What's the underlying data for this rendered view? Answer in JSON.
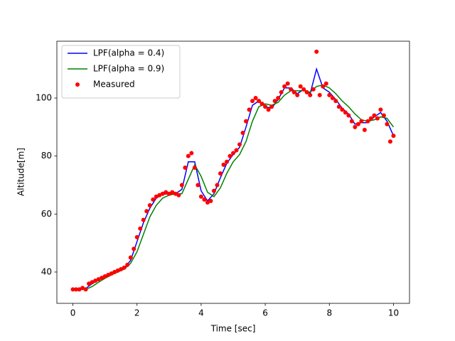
{
  "chart_data": {
    "type": "line",
    "x_label": "Time [sec]",
    "y_label": "Altitude[m]",
    "xlim": [
      -0.5,
      10.5
    ],
    "ylim": [
      29.2,
      119.6
    ],
    "xticks": [
      0,
      2,
      4,
      6,
      8,
      10
    ],
    "yticks": [
      40,
      60,
      80,
      100
    ],
    "grid": false,
    "legend": "upper-left",
    "series": [
      {
        "name": "LPF(alpha = 0.4)",
        "color": "#0000ff",
        "style": "line",
        "x": [
          0,
          0.2,
          0.4,
          0.6,
          0.8,
          1,
          1.2,
          1.4,
          1.6,
          1.8,
          2,
          2.2,
          2.4,
          2.6,
          2.8,
          3,
          3.2,
          3.4,
          3.6,
          3.8,
          4,
          4.2,
          4.4,
          4.6,
          4.8,
          5,
          5.2,
          5.4,
          5.6,
          5.8,
          6,
          6.2,
          6.4,
          6.6,
          6.8,
          7,
          7.2,
          7.4,
          7.6,
          7.8,
          8,
          8.2,
          8.4,
          8.6,
          8.8,
          9,
          9.2,
          9.4,
          9.6,
          9.8,
          10
        ],
        "values": [
          34,
          34,
          34.3,
          36,
          37.3,
          38.3,
          39.3,
          40.3,
          41.3,
          44,
          50.5,
          57,
          62,
          65.5,
          66.8,
          67,
          67,
          68.5,
          78,
          78,
          68,
          64.5,
          67,
          72.5,
          77.5,
          80.5,
          83,
          90,
          97.5,
          99,
          97,
          96.5,
          99.5,
          103.5,
          103.5,
          101.5,
          103,
          101.5,
          110,
          103.5,
          102,
          99.5,
          96.5,
          94.5,
          91,
          91.5,
          91.5,
          93.5,
          95,
          92,
          87
        ]
      },
      {
        "name": "LPF(alpha = 0.9)",
        "color": "#008000",
        "style": "line",
        "x": [
          0,
          0.2,
          0.4,
          0.6,
          0.8,
          1,
          1.2,
          1.4,
          1.6,
          1.8,
          2,
          2.2,
          2.4,
          2.6,
          2.8,
          3,
          3.2,
          3.4,
          3.6,
          3.8,
          4,
          4.2,
          4.4,
          4.6,
          4.8,
          5,
          5.2,
          5.4,
          5.6,
          5.8,
          6,
          6.2,
          6.4,
          6.6,
          6.8,
          7,
          7.2,
          7.4,
          7.6,
          7.8,
          8,
          8.2,
          8.4,
          8.6,
          8.8,
          9,
          9.2,
          9.4,
          9.6,
          9.8,
          10
        ],
        "values": [
          34,
          34,
          34,
          35,
          36.5,
          37.8,
          39,
          40,
          41,
          43,
          47,
          53,
          59,
          63,
          65.5,
          66.5,
          67,
          67,
          72,
          77,
          73,
          67.5,
          66,
          69,
          74,
          78,
          80.5,
          85,
          92,
          97,
          98,
          97.5,
          98.5,
          101,
          102.5,
          102.5,
          102.5,
          102,
          104,
          104.5,
          103.5,
          101.5,
          99,
          97,
          94.5,
          92.5,
          92,
          92.5,
          93.5,
          93,
          90
        ]
      },
      {
        "name": "Measured",
        "color": "#ff0000",
        "style": "points",
        "x": [
          0,
          0.1,
          0.2,
          0.3,
          0.4,
          0.5,
          0.6,
          0.7,
          0.8,
          0.9,
          1,
          1.1,
          1.2,
          1.3,
          1.4,
          1.5,
          1.6,
          1.7,
          1.8,
          1.9,
          2,
          2.1,
          2.2,
          2.3,
          2.4,
          2.5,
          2.6,
          2.7,
          2.8,
          2.9,
          3,
          3.1,
          3.2,
          3.3,
          3.4,
          3.5,
          3.6,
          3.7,
          3.8,
          3.9,
          4,
          4.1,
          4.2,
          4.3,
          4.4,
          4.5,
          4.6,
          4.7,
          4.8,
          4.9,
          5,
          5.1,
          5.2,
          5.3,
          5.4,
          5.5,
          5.6,
          5.7,
          5.8,
          5.9,
          6,
          6.1,
          6.2,
          6.3,
          6.4,
          6.5,
          6.6,
          6.7,
          6.8,
          6.9,
          7,
          7.1,
          7.2,
          7.3,
          7.4,
          7.5,
          7.6,
          7.7,
          7.8,
          7.9,
          8,
          8.1,
          8.2,
          8.3,
          8.4,
          8.5,
          8.6,
          8.7,
          8.8,
          8.9,
          9,
          9.1,
          9.2,
          9.3,
          9.4,
          9.5,
          9.6,
          9.7,
          9.8,
          9.9,
          10
        ],
        "values": [
          34,
          34,
          34,
          34.5,
          34,
          36,
          36.5,
          37,
          37.5,
          38,
          38.5,
          39,
          39.5,
          40,
          40.5,
          41,
          41.5,
          42.5,
          45,
          48,
          52,
          55,
          58,
          61,
          63,
          65,
          66,
          66.5,
          67,
          67.5,
          67,
          67.5,
          67,
          66.5,
          70,
          76,
          80,
          81,
          76,
          70,
          66,
          65,
          64,
          64.5,
          68,
          70,
          74,
          77,
          78,
          80,
          81,
          82,
          84,
          88,
          92,
          96,
          99,
          100,
          99,
          98,
          97,
          96,
          97,
          99,
          100,
          102,
          104,
          105,
          103,
          102,
          101,
          104,
          103,
          102,
          101,
          103,
          116,
          101,
          104,
          105,
          101,
          100,
          99,
          97,
          96,
          95,
          94,
          92,
          90,
          91,
          92,
          89,
          92,
          93,
          94,
          93,
          96,
          94,
          91,
          85,
          87
        ]
      }
    ]
  }
}
